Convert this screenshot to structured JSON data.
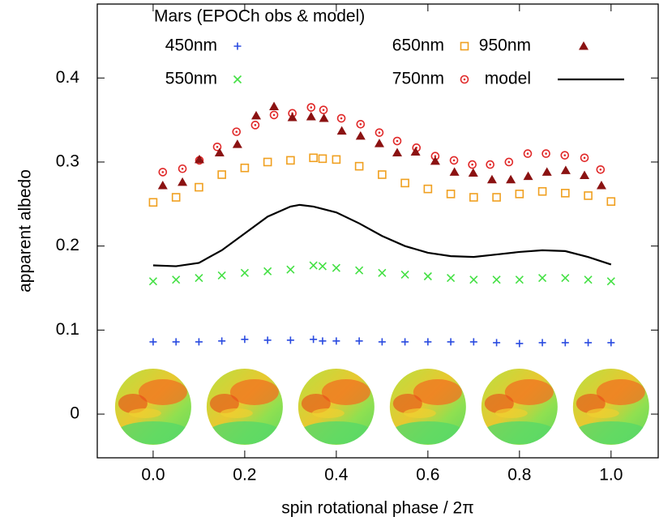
{
  "chart_data": {
    "type": "scatter",
    "xlabel": "spin rotational phase / 2π",
    "ylabel": "apparent albedo",
    "xlim": [
      -0.122,
      1.103
    ],
    "ylim": [
      -0.052,
      0.488
    ],
    "xticks": [
      {
        "value": 0,
        "label": "0.0"
      },
      0.2,
      0.4,
      0.6,
      0.8,
      {
        "value": 1,
        "label": "1.0"
      }
    ],
    "yticks": [
      0,
      0.1,
      0.2,
      0.3,
      0.4
    ],
    "grid": false,
    "legend": {
      "title": "Mars (EPOCh obs & model)",
      "position": "top"
    },
    "series": [
      {
        "name": "450nm",
        "color": "#2a4be0",
        "marker": "plus",
        "x": [
          0,
          0.05,
          0.1,
          0.15,
          0.2,
          0.25,
          0.3,
          0.35,
          0.37,
          0.4,
          0.45,
          0.5,
          0.55,
          0.6,
          0.65,
          0.7,
          0.75,
          0.8,
          0.85,
          0.9,
          0.95,
          1
        ],
        "values": [
          0.086,
          0.086,
          0.086,
          0.087,
          0.089,
          0.088,
          0.088,
          0.089,
          0.087,
          0.087,
          0.087,
          0.086,
          0.086,
          0.086,
          0.086,
          0.086,
          0.085,
          0.084,
          0.085,
          0.085,
          0.085,
          0.085
        ]
      },
      {
        "name": "550nm",
        "color": "#44e044",
        "marker": "cross",
        "x": [
          0,
          0.05,
          0.1,
          0.15,
          0.2,
          0.25,
          0.3,
          0.35,
          0.37,
          0.4,
          0.45,
          0.5,
          0.55,
          0.6,
          0.65,
          0.7,
          0.75,
          0.8,
          0.85,
          0.9,
          0.95,
          1
        ],
        "values": [
          0.158,
          0.16,
          0.162,
          0.165,
          0.168,
          0.17,
          0.172,
          0.177,
          0.176,
          0.174,
          0.171,
          0.168,
          0.166,
          0.164,
          0.162,
          0.16,
          0.16,
          0.16,
          0.162,
          0.162,
          0.16,
          0.158
        ]
      },
      {
        "name": "650nm",
        "color": "#f0a020",
        "marker": "square",
        "x": [
          0,
          0.05,
          0.1,
          0.15,
          0.2,
          0.25,
          0.3,
          0.35,
          0.37,
          0.4,
          0.45,
          0.5,
          0.55,
          0.6,
          0.65,
          0.7,
          0.75,
          0.8,
          0.85,
          0.9,
          0.95,
          1
        ],
        "values": [
          0.252,
          0.258,
          0.27,
          0.285,
          0.293,
          0.3,
          0.302,
          0.305,
          0.304,
          0.303,
          0.295,
          0.285,
          0.275,
          0.268,
          0.262,
          0.258,
          0.258,
          0.262,
          0.265,
          0.263,
          0.26,
          0.253
        ]
      },
      {
        "name": "750nm",
        "color": "#e02828",
        "marker": "circle",
        "x": [
          0.021,
          0.064,
          0.101,
          0.14,
          0.182,
          0.223,
          0.264,
          0.304,
          0.345,
          0.372,
          0.411,
          0.453,
          0.494,
          0.533,
          0.575,
          0.616,
          0.657,
          0.697,
          0.736,
          0.777,
          0.818,
          0.858,
          0.899,
          0.942,
          0.977
        ],
        "values": [
          0.288,
          0.292,
          0.302,
          0.318,
          0.336,
          0.344,
          0.356,
          0.358,
          0.365,
          0.362,
          0.352,
          0.345,
          0.335,
          0.325,
          0.317,
          0.307,
          0.302,
          0.297,
          0.297,
          0.3,
          0.31,
          0.31,
          0.308,
          0.305,
          0.291
        ]
      },
      {
        "name": "950nm",
        "color": "#8b1212",
        "marker": "triangle",
        "x": [
          0.021,
          0.064,
          0.101,
          0.145,
          0.184,
          0.225,
          0.264,
          0.304,
          0.345,
          0.373,
          0.412,
          0.453,
          0.494,
          0.533,
          0.573,
          0.616,
          0.658,
          0.699,
          0.74,
          0.781,
          0.819,
          0.86,
          0.901,
          0.942,
          0.979
        ],
        "values": [
          0.272,
          0.276,
          0.303,
          0.311,
          0.321,
          0.355,
          0.366,
          0.353,
          0.354,
          0.352,
          0.337,
          0.331,
          0.322,
          0.311,
          0.312,
          0.301,
          0.288,
          0.287,
          0.279,
          0.279,
          0.283,
          0.288,
          0.29,
          0.284,
          0.272
        ]
      },
      {
        "name": "model",
        "color": "#000000",
        "marker": "line",
        "x": [
          0,
          0.05,
          0.1,
          0.15,
          0.2,
          0.25,
          0.3,
          0.32,
          0.35,
          0.4,
          0.45,
          0.5,
          0.55,
          0.6,
          0.65,
          0.7,
          0.75,
          0.8,
          0.85,
          0.9,
          0.95,
          1
        ],
        "values": [
          0.177,
          0.176,
          0.18,
          0.195,
          0.215,
          0.235,
          0.247,
          0.249,
          0.247,
          0.24,
          0.227,
          0.212,
          0.2,
          0.192,
          0.188,
          0.187,
          0.19,
          0.193,
          0.195,
          0.194,
          0.187,
          0.178
        ]
      }
    ]
  }
}
